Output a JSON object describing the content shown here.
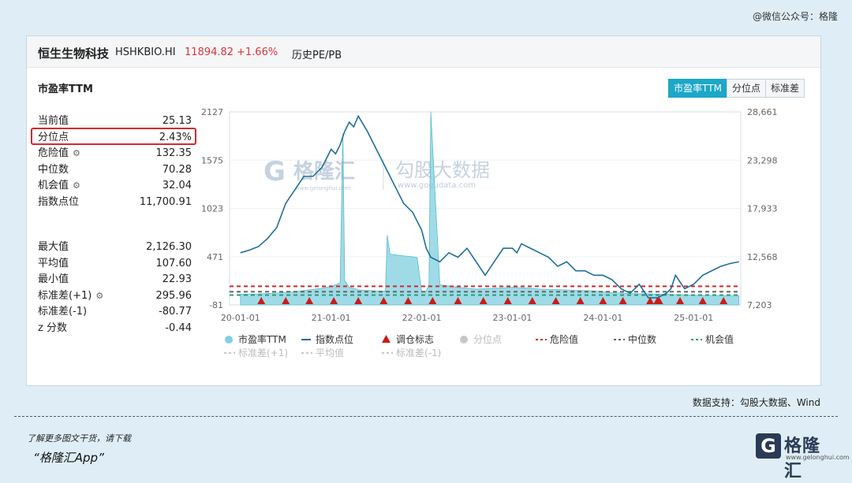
{
  "header_watermark": "@微信公众号：格隆",
  "title": {
    "name": "恒生生物科技",
    "code": "HSHKBIO.HI",
    "price": "11894.82",
    "change": "+1.66%",
    "history": "历史PE/PB"
  },
  "metric_title": "市盈率TTM",
  "tabs": [
    "市盈率TTM",
    "分位点",
    "标准差"
  ],
  "stats_top": [
    {
      "label": "当前值",
      "value": "25.13",
      "gear": false
    },
    {
      "label": "分位点",
      "value": "2.43%",
      "gear": false
    },
    {
      "label": "危险值",
      "value": "132.35",
      "gear": true
    },
    {
      "label": "中位数",
      "value": "70.28",
      "gear": false
    },
    {
      "label": "机会值",
      "value": "32.04",
      "gear": true
    },
    {
      "label": "指数点位",
      "value": "11,700.91",
      "gear": false
    }
  ],
  "stats_bottom": [
    {
      "label": "最大值",
      "value": "2,126.30",
      "gear": false
    },
    {
      "label": "平均值",
      "value": "107.60",
      "gear": false
    },
    {
      "label": "最小值",
      "value": "22.93",
      "gear": false
    },
    {
      "label": "标准差(+1)",
      "value": "295.96",
      "gear": true
    },
    {
      "label": "标准差(-1)",
      "value": "-80.77",
      "gear": false
    },
    {
      "label": "z 分数",
      "value": "-0.44",
      "gear": false
    }
  ],
  "chart_watermark": {
    "brand": "格隆汇",
    "brand_url": "www.gelonghui.com",
    "data_brand": "勾股大数据",
    "data_url": "www.gogudata.com"
  },
  "source": "数据支持：勾股大数据、Wind",
  "cta": {
    "line1": "了解更多图文干货，请下载",
    "line2": "“格隆汇App”"
  },
  "logo": {
    "mark": "G",
    "text": "格隆汇",
    "url": "www.gelonghui.com"
  },
  "chart_data": {
    "type": "line",
    "x_ticks": [
      "20-01-01",
      "21-01-01",
      "22-01-01",
      "23-01-01",
      "24-01-01",
      "25-01-01"
    ],
    "x_range": [
      2019.88,
      2025.52
    ],
    "y_left": {
      "ticks": [
        "2127",
        "1575",
        "1023",
        "471",
        "-81"
      ],
      "range": [
        -81,
        2127
      ]
    },
    "y_right": {
      "ticks": [
        "28,661",
        "23,298",
        "17,933",
        "12,568",
        "7,203"
      ],
      "range": [
        7203,
        28661
      ]
    },
    "series": [
      {
        "name": "市盈率TTM",
        "axis": "left",
        "kind": "area",
        "color": "#7fcfdf",
        "x": [
          2020.0,
          2020.2,
          2020.4,
          2020.6,
          2020.75,
          2020.9,
          2021.0,
          2021.05,
          2021.1,
          2021.13,
          2021.15,
          2021.2,
          2021.28,
          2021.3,
          2021.5,
          2021.6,
          2021.62,
          2021.65,
          2021.8,
          2021.9,
          2021.95,
          2022.0,
          2022.05,
          2022.08,
          2022.1,
          2022.2,
          2022.4,
          2022.6,
          2022.8,
          2023.0,
          2023.2,
          2023.3,
          2023.5,
          2023.7,
          2023.9,
          2024.0,
          2024.1,
          2024.3,
          2024.5,
          2024.7,
          2024.9,
          2025.0,
          2025.1,
          2025.3,
          2025.4,
          2025.5
        ],
        "y": [
          40,
          45,
          55,
          70,
          90,
          110,
          130,
          150,
          170,
          1880,
          200,
          120,
          100,
          90,
          80,
          75,
          720,
          500,
          480,
          470,
          460,
          65,
          80,
          150,
          2130,
          150,
          120,
          100,
          110,
          120,
          110,
          100,
          95,
          85,
          80,
          70,
          60,
          50,
          45,
          40,
          35,
          30,
          28,
          26,
          25,
          25
        ]
      },
      {
        "name": "指数点位",
        "axis": "right",
        "kind": "line",
        "color": "#1f6e9c",
        "x": [
          2020.0,
          2020.1,
          2020.2,
          2020.3,
          2020.4,
          2020.5,
          2020.6,
          2020.7,
          2020.8,
          2020.9,
          2021.0,
          2021.05,
          2021.1,
          2021.15,
          2021.2,
          2021.25,
          2021.3,
          2021.4,
          2021.5,
          2021.55,
          2021.6,
          2021.7,
          2021.8,
          2021.9,
          2022.0,
          2022.05,
          2022.1,
          2022.2,
          2022.3,
          2022.4,
          2022.5,
          2022.6,
          2022.7,
          2022.8,
          2022.9,
          2023.0,
          2023.05,
          2023.1,
          2023.2,
          2023.3,
          2023.4,
          2023.5,
          2023.6,
          2023.7,
          2023.8,
          2023.9,
          2024.0,
          2024.1,
          2024.2,
          2024.3,
          2024.4,
          2024.5,
          2024.6,
          2024.7,
          2024.75,
          2024.8,
          2024.9,
          2025.0,
          2025.1,
          2025.2,
          2025.3,
          2025.4,
          2025.5
        ],
        "y": [
          13000,
          13300,
          13700,
          14600,
          15800,
          18500,
          20000,
          21500,
          21500,
          22500,
          24500,
          24000,
          25000,
          26500,
          27500,
          27000,
          28200,
          26500,
          24500,
          23500,
          22500,
          20500,
          18500,
          17500,
          15500,
          13500,
          12500,
          12000,
          13000,
          12500,
          13500,
          12000,
          10500,
          12000,
          13500,
          13500,
          13000,
          14000,
          13500,
          13000,
          12500,
          11500,
          12000,
          11000,
          11000,
          10500,
          10500,
          10000,
          9000,
          8500,
          9500,
          8000,
          8000,
          8500,
          9000,
          10500,
          9000,
          9500,
          10500,
          11000,
          11500,
          11800,
          12000
        ]
      }
    ],
    "markers": {
      "name": "调仓标志",
      "color": "#cc1a1a",
      "x": [
        2020.23,
        2020.5,
        2020.76,
        2021.03,
        2021.3,
        2021.58,
        2021.85,
        2022.12,
        2022.4,
        2022.68,
        2022.95,
        2023.22,
        2023.48,
        2023.75,
        2024.0,
        2024.22,
        2024.52,
        2024.6,
        2024.62,
        2024.85,
        2025.1,
        2025.33
      ]
    },
    "reference_lines": [
      {
        "name": "危险值",
        "value": 132.35,
        "color": "#cc2b2b"
      },
      {
        "name": "中位数",
        "value": 70.28,
        "color": "#666666"
      },
      {
        "name": "机会值",
        "value": 32.04,
        "color": "#2d9a7a"
      },
      {
        "name": "标准差(+1)",
        "value": 295.96,
        "color": "#cccccc",
        "hidden": true
      },
      {
        "name": "平均值",
        "value": 107.6,
        "color": "#cccccc",
        "hidden": true
      },
      {
        "name": "标准差(-1)",
        "value": -80.77,
        "color": "#cccccc",
        "hidden": true
      }
    ],
    "legend": [
      {
        "label": "市盈率TTM",
        "kind": "circle",
        "color": "#7fcfdf",
        "active": true
      },
      {
        "label": "指数点位",
        "kind": "line",
        "color": "#1f6e9c",
        "active": true
      },
      {
        "label": "调仓标志",
        "kind": "triangle",
        "color": "#cc1a1a",
        "active": true
      },
      {
        "label": "分位点",
        "kind": "circle",
        "color": "#c7c7c7",
        "active": false
      },
      {
        "label": "危险值",
        "kind": "dash",
        "color": "#cc2b2b",
        "active": true
      },
      {
        "label": "中位数",
        "kind": "dash",
        "color": "#666666",
        "active": true
      },
      {
        "label": "机会值",
        "kind": "dash",
        "color": "#2d9a7a",
        "active": true
      },
      {
        "label": "标准差(+1)",
        "kind": "dash",
        "color": "#c7c7c7",
        "active": false
      },
      {
        "label": "平均值",
        "kind": "dash",
        "color": "#c7c7c7",
        "active": false
      },
      {
        "label": "标准差(-1)",
        "kind": "dash",
        "color": "#c7c7c7",
        "active": false
      }
    ]
  }
}
